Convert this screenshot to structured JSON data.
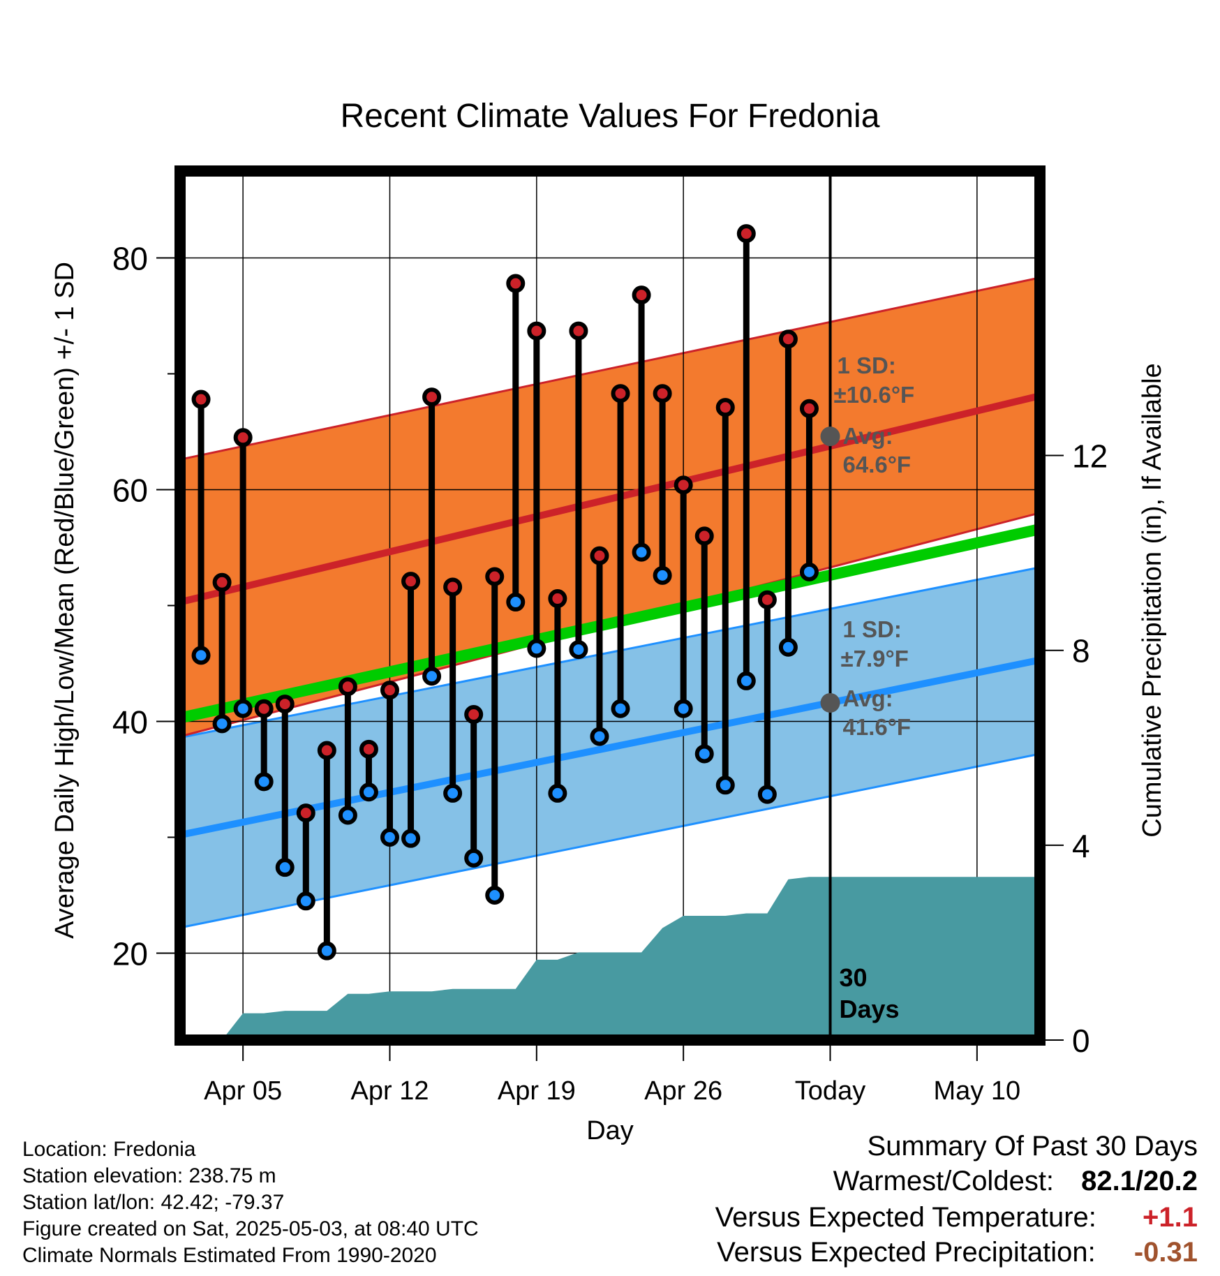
{
  "chart_data": {
    "type": "line",
    "title": "Recent Climate Values For Fredonia",
    "xlabel": "Day",
    "ylabel": "Average Daily High/Low/Mean (Red/Blue/Green) +/- 1 SD",
    "ylabel_right": "Cumulative Precipitation (in), If Available",
    "x_tick_labels": [
      "Apr 05",
      "Apr 12",
      "Apr 19",
      "Apr 26",
      "Today",
      "May 10"
    ],
    "x_tick_days": [
      3,
      10,
      17,
      24,
      31,
      38
    ],
    "x_range_days": [
      0,
      41
    ],
    "today_day": 31,
    "ylim": [
      12.5,
      87.5
    ],
    "y_ticks": [
      20,
      40,
      60,
      80
    ],
    "y_minor_ticks": [
      30,
      50,
      70
    ],
    "y2lim": [
      0,
      17.84
    ],
    "y2_ticks": [
      0,
      4,
      8,
      12
    ],
    "grid": true,
    "normals": {
      "high_mean": {
        "start": 50.3,
        "end": 68.1
      },
      "high_sd_upper": {
        "start": 62.6,
        "end": 78.3
      },
      "high_sd_lower": {
        "start": 38.7,
        "end": 58.0
      },
      "low_mean": {
        "start": 30.2,
        "end": 45.3
      },
      "low_sd_upper": {
        "start": 38.6,
        "end": 53.3
      },
      "low_sd_lower": {
        "start": 22.2,
        "end": 37.2
      },
      "mean": {
        "start": 40.3,
        "end": 56.6
      }
    },
    "normals_colors": {
      "high_band": "#f37a2e",
      "high_line": "#cc2229",
      "low_band": "#85c1e7",
      "low_line": "#1e90ff",
      "mean_line": "#00cc00",
      "precip": "#489aa1"
    },
    "annotations": {
      "high_sd_label": "1 SD:",
      "high_sd_value": "±10.6°F",
      "high_avg_label": "Avg:",
      "high_avg_value": "64.6°F",
      "high_avg_point": 64.6,
      "low_sd_label": "1 SD:",
      "low_sd_value": "±7.9°F",
      "low_avg_label": "Avg:",
      "low_avg_value": "41.6°F",
      "low_avg_point": 41.6,
      "days_number": "30",
      "days_word": "Days"
    },
    "series": [
      {
        "name": "High",
        "color": "#cc2229",
        "x": [
          1,
          2,
          3,
          4,
          5,
          6,
          7,
          8,
          9,
          10,
          11,
          12,
          13,
          14,
          15,
          16,
          17,
          18,
          19,
          20,
          21,
          22,
          23,
          24,
          25,
          26,
          27,
          28,
          29,
          30
        ],
        "values": [
          67.8,
          52.0,
          64.5,
          41.1,
          41.5,
          32.1,
          37.5,
          43.0,
          37.6,
          42.7,
          52.1,
          68.0,
          51.6,
          40.6,
          52.5,
          77.8,
          73.7,
          50.6,
          73.7,
          54.3,
          68.3,
          76.8,
          68.3,
          60.4,
          56.0,
          67.1,
          82.1,
          50.5,
          73.0,
          67.0
        ]
      },
      {
        "name": "Low",
        "color": "#1e90ff",
        "x": [
          1,
          2,
          3,
          4,
          5,
          6,
          7,
          8,
          9,
          10,
          11,
          12,
          13,
          14,
          15,
          16,
          17,
          18,
          19,
          20,
          21,
          22,
          23,
          24,
          25,
          26,
          27,
          28,
          29,
          30
        ],
        "values": [
          45.7,
          39.8,
          41.1,
          34.8,
          27.4,
          24.5,
          20.2,
          31.9,
          33.9,
          30.0,
          29.9,
          43.9,
          33.8,
          28.2,
          25.0,
          50.3,
          46.3,
          33.8,
          46.2,
          38.7,
          41.1,
          54.6,
          52.6,
          41.1,
          37.2,
          34.5,
          43.5,
          33.7,
          46.4,
          52.9
        ]
      },
      {
        "name": "Cumulative Precipitation",
        "color": "#489aa1",
        "x": [
          1,
          2,
          3,
          4,
          5,
          6,
          7,
          8,
          9,
          10,
          11,
          12,
          13,
          14,
          15,
          16,
          17,
          18,
          19,
          20,
          21,
          22,
          23,
          24,
          25,
          26,
          27,
          28,
          29,
          30,
          31,
          41
        ],
        "values": [
          0.0,
          0.0,
          0.55,
          0.55,
          0.6,
          0.6,
          0.6,
          0.95,
          0.95,
          1.0,
          1.0,
          1.0,
          1.05,
          1.05,
          1.05,
          1.05,
          1.65,
          1.65,
          1.8,
          1.8,
          1.8,
          1.8,
          2.3,
          2.55,
          2.55,
          2.55,
          2.6,
          2.6,
          3.3,
          3.35,
          3.35,
          3.35
        ]
      }
    ]
  },
  "info": {
    "location": "Location: Fredonia",
    "elevation": "Station elevation: 238.75 m",
    "latlon": "Station lat/lon: 42.42; -79.37",
    "created": "Figure created on Sat, 2025-05-03, at 08:40 UTC",
    "normals": "Climate Normals Estimated From 1990-2020"
  },
  "summary": {
    "title": "Summary Of Past 30 Days",
    "warmest_label": "Warmest/Coldest:",
    "warmest_value": "82.1/20.2",
    "temp_label": "Versus Expected Temperature:",
    "temp_value": "+1.1",
    "temp_color": "#cc2229",
    "precip_label": "Versus Expected Precipitation:",
    "precip_value": "-0.31",
    "precip_color": "#a0522d"
  }
}
